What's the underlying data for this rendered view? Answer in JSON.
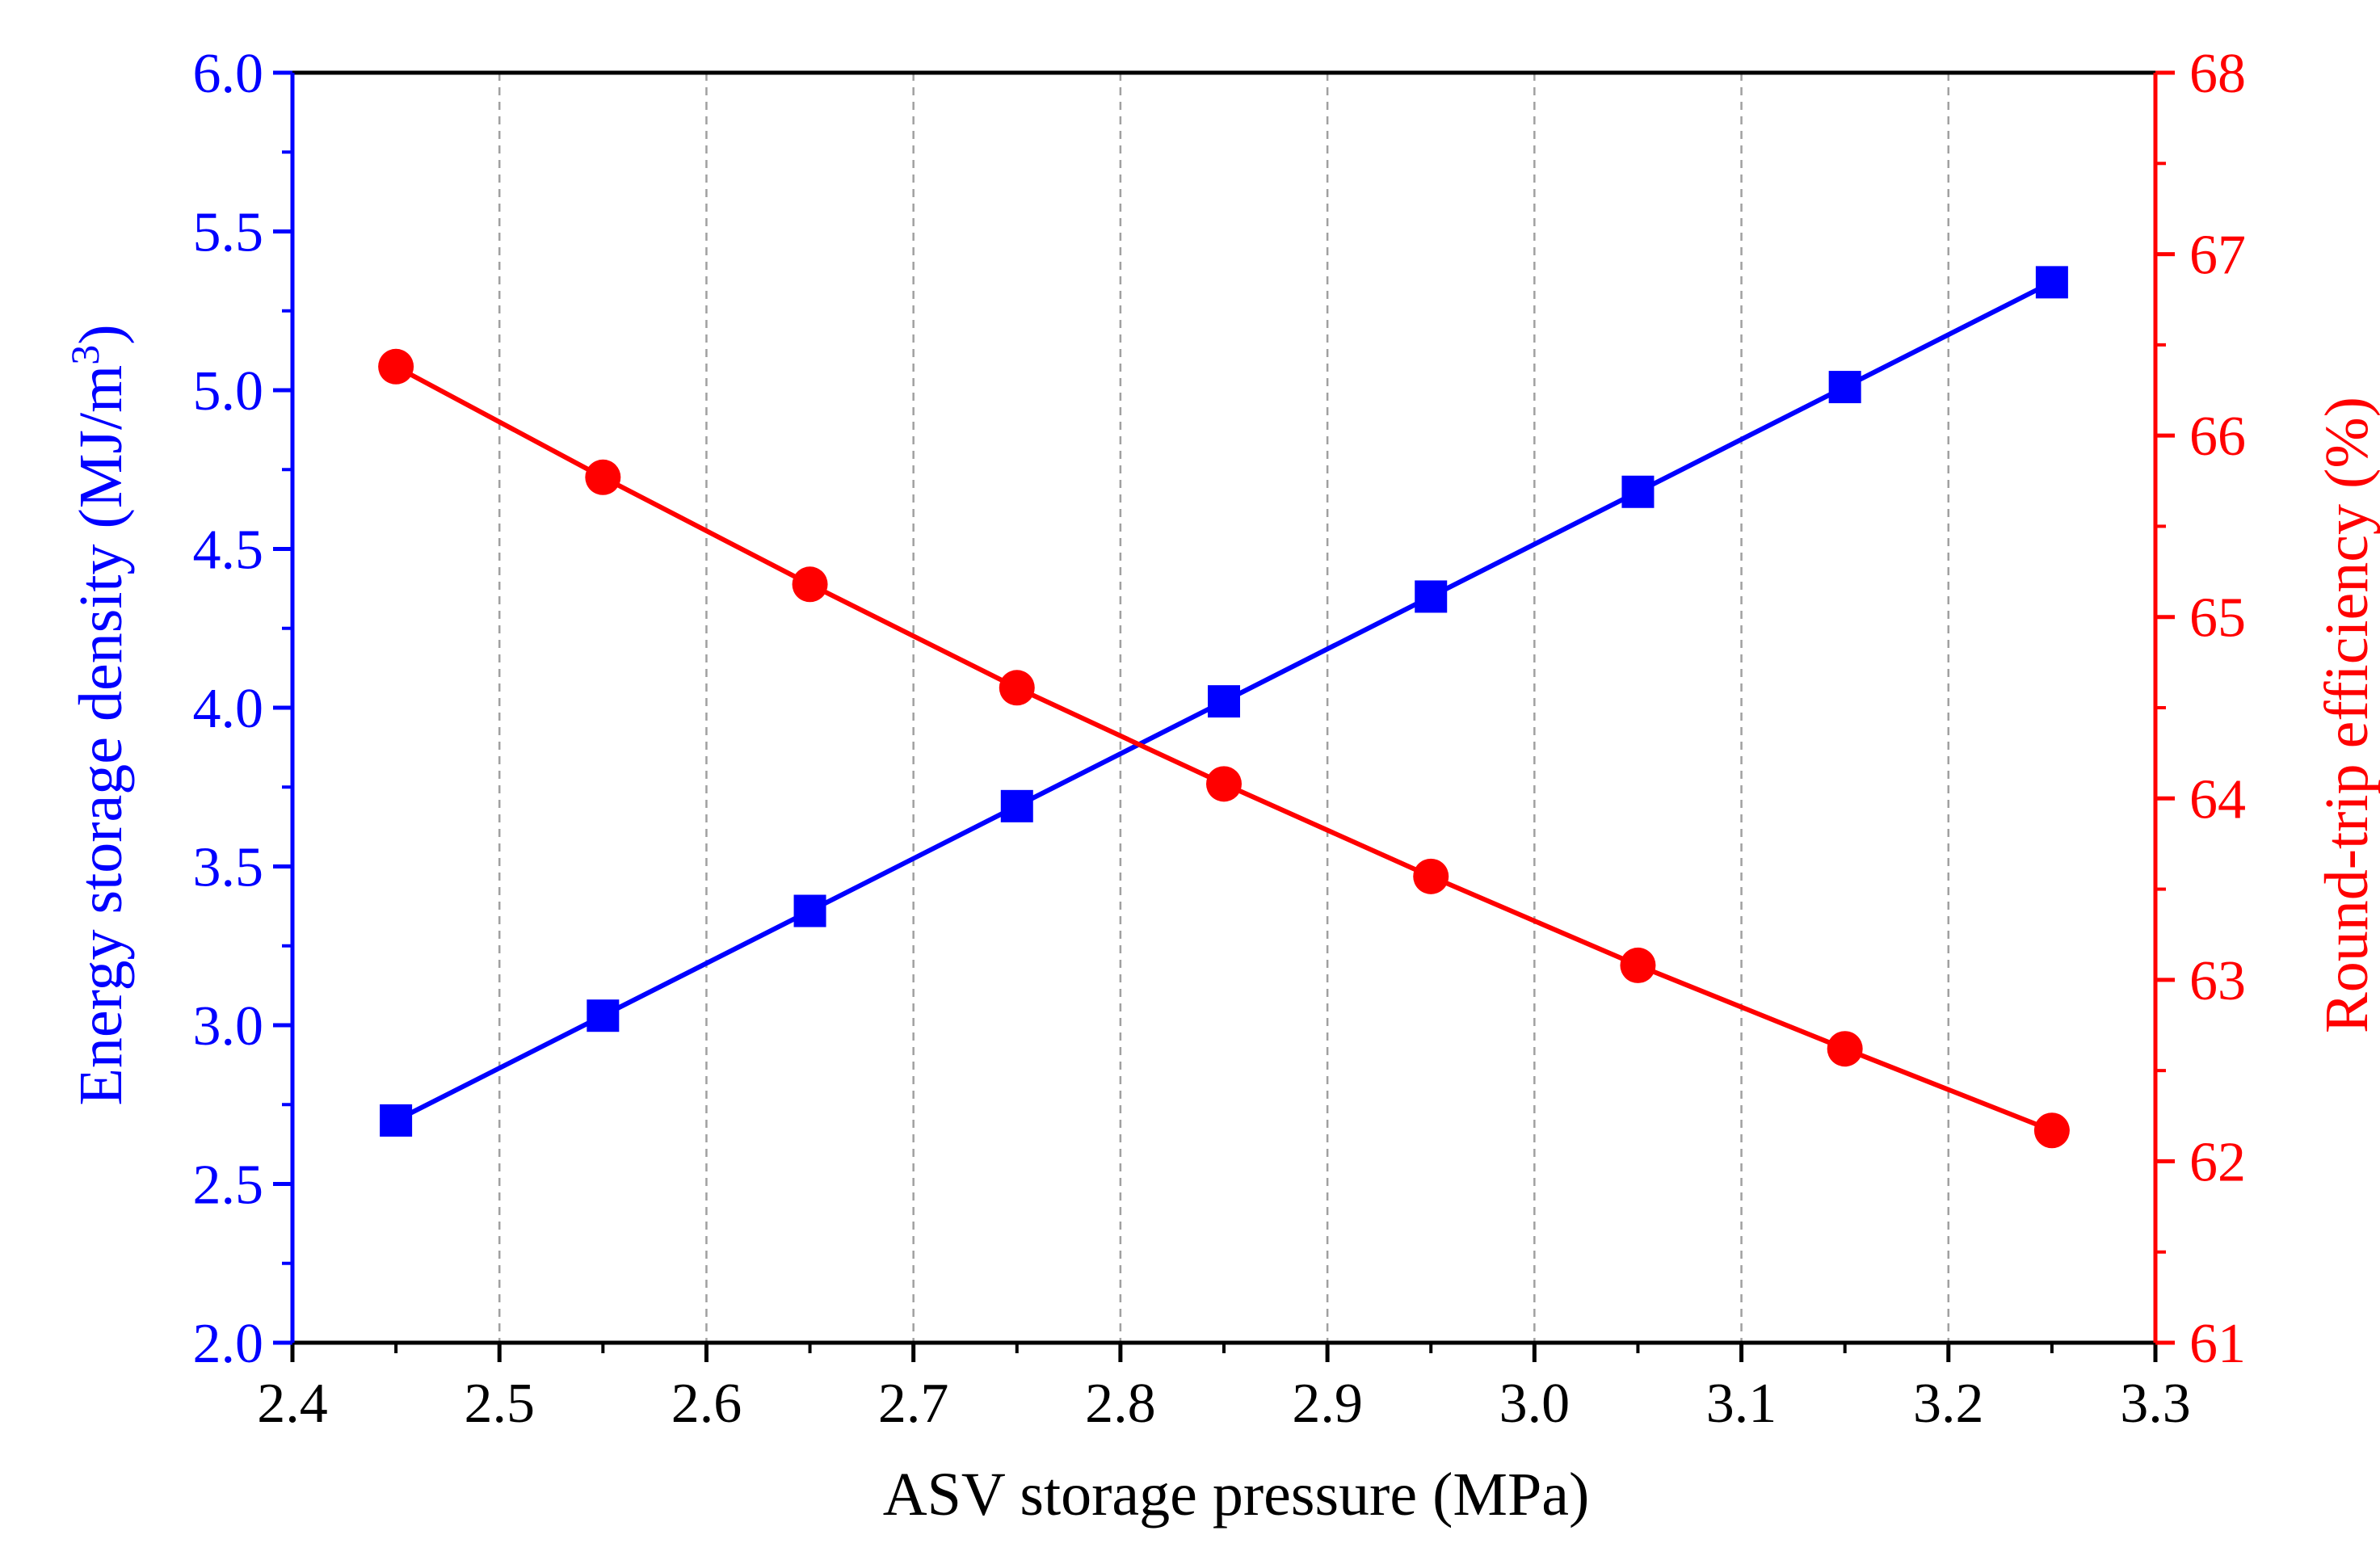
{
  "chart_data": {
    "type": "line",
    "title": "",
    "xlabel": "ASV storage pressure (MPa)",
    "ylabel_left": "Energy storage density (MJ/m",
    "ylabel_left_sup": "3",
    "ylabel_left_close": ")",
    "ylabel_right": "Round-trip efficiency (%)",
    "xlim": [
      2.4,
      3.3
    ],
    "ylim_left": [
      2.0,
      6.0
    ],
    "ylim_right": [
      61,
      68
    ],
    "x_ticks": [
      "2.4",
      "2.5",
      "2.6",
      "2.7",
      "2.8",
      "2.9",
      "3.0",
      "3.1",
      "3.2",
      "3.3"
    ],
    "y_left_ticks": [
      "2.0",
      "2.5",
      "3.0",
      "3.5",
      "4.0",
      "4.5",
      "5.0",
      "5.5",
      "6.0"
    ],
    "y_right_ticks": [
      "61",
      "62",
      "63",
      "64",
      "65",
      "66",
      "67",
      "68"
    ],
    "grid": "vertical dashed",
    "series": [
      {
        "name": "Energy storage density",
        "axis": "left",
        "color": "#0000ff",
        "marker": "square",
        "x": [
          2.45,
          2.55,
          2.65,
          2.75,
          2.85,
          2.95,
          3.05,
          3.15,
          3.25
        ],
        "values": [
          2.7,
          3.03,
          3.36,
          3.69,
          4.02,
          4.35,
          4.68,
          5.01,
          5.34
        ]
      },
      {
        "name": "Round-trip efficiency",
        "axis": "right",
        "color": "#ff0000",
        "marker": "circle",
        "x": [
          2.45,
          2.55,
          2.65,
          2.75,
          2.85,
          2.95,
          3.05,
          3.15,
          3.25
        ],
        "values": [
          66.38,
          65.77,
          65.18,
          64.61,
          64.08,
          63.57,
          63.08,
          62.62,
          62.17
        ]
      }
    ]
  }
}
